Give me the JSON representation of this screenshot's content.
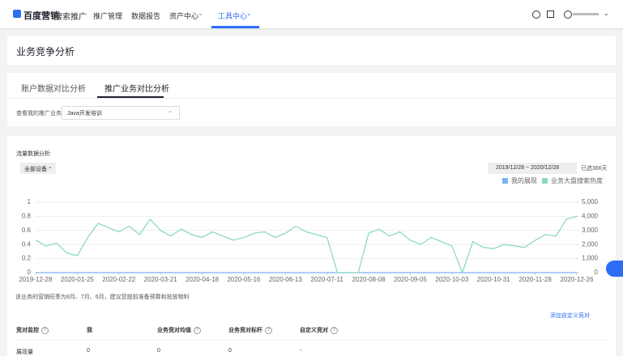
{
  "nav": {
    "logo": "百度营销",
    "product": "搜索推广",
    "items": [
      "推广管理",
      "数据报告",
      "资产中心",
      "工具中心"
    ]
  },
  "page_title": "业务竞争分析",
  "tabs": [
    "账户数据对比分析",
    "推广业务对比分析"
  ],
  "filter": {
    "label": "查看我的推广业务",
    "value": "Java开发培训"
  },
  "section_title": "流量数据分析",
  "device": "全部设备",
  "date_range": "2019/12/28 ~ 2020/12/28",
  "days": "已选366天",
  "chart_data": {
    "type": "line",
    "x": [
      "2019-12-28",
      "2020-01-04",
      "2020-01-11",
      "2020-01-18",
      "2020-01-25",
      "2020-02-01",
      "2020-02-08",
      "2020-02-15",
      "2020-02-22",
      "2020-02-29",
      "2020-03-07",
      "2020-03-14",
      "2020-03-21",
      "2020-03-28",
      "2020-04-04",
      "2020-04-11",
      "2020-04-18",
      "2020-04-25",
      "2020-05-02",
      "2020-05-09",
      "2020-05-16",
      "2020-05-23",
      "2020-05-30",
      "2020-06-06",
      "2020-06-13",
      "2020-06-20",
      "2020-06-27",
      "2020-07-04",
      "2020-07-11",
      "2020-07-18",
      "2020-07-25",
      "2020-08-01",
      "2020-08-08",
      "2020-08-15",
      "2020-08-22",
      "2020-08-29",
      "2020-09-05",
      "2020-09-12",
      "2020-09-19",
      "2020-09-26",
      "2020-10-03",
      "2020-10-10",
      "2020-10-17",
      "2020-10-24",
      "2020-10-31",
      "2020-11-07",
      "2020-11-14",
      "2020-11-21",
      "2020-11-28",
      "2020-12-05",
      "2020-12-12",
      "2020-12-19",
      "2020-12-26"
    ],
    "series": [
      {
        "name": "我的展现",
        "color": "#7fb2f0",
        "values": [
          0,
          0,
          0,
          0,
          0,
          0,
          0,
          0,
          0,
          0,
          0,
          0,
          0,
          0,
          0,
          0,
          0,
          0,
          0,
          0,
          0,
          0,
          0,
          0,
          0,
          0,
          0,
          0,
          0,
          0,
          0,
          0,
          0,
          0,
          0,
          0,
          0,
          0,
          0,
          0,
          0,
          0,
          0,
          0,
          0,
          0,
          0,
          0,
          0,
          0,
          0,
          0,
          0
        ]
      },
      {
        "name": "业务大盘搜索热度",
        "color": "#8ed9c3",
        "axis": "y2",
        "values": [
          2300,
          1900,
          2100,
          1400,
          1200,
          2500,
          3500,
          3200,
          2900,
          3300,
          2700,
          3800,
          3000,
          2600,
          3100,
          2700,
          2500,
          2900,
          2600,
          2300,
          2500,
          2800,
          2900,
          2500,
          2800,
          3300,
          2900,
          2700,
          2500,
          0,
          0,
          0,
          2800,
          3100,
          2600,
          2900,
          2300,
          2000,
          2500,
          2200,
          1900,
          0,
          2200,
          1800,
          1700,
          2000,
          1900,
          1800,
          2300,
          2700,
          2600,
          3800,
          4000
        ]
      }
    ],
    "xlim": [
      "2019-12-28",
      "2020-12-26"
    ],
    "xticks": [
      "2019-12-28",
      "2020-01-25",
      "2020-02-22",
      "2020-03-21",
      "2020-04-18",
      "2020-05-16",
      "2020-06-13",
      "2020-07-11",
      "2020-08-08",
      "2020-09-05",
      "2020-10-03",
      "2020-10-31",
      "2020-11-28",
      "2020-12-26"
    ],
    "ylim": [
      0,
      1
    ],
    "yticks": [
      0,
      0.2,
      0.4,
      0.6,
      0.8,
      1
    ],
    "y2lim": [
      0,
      5000
    ],
    "y2ticks": [
      0,
      {
        "value": 1000,
        "label": "1,000"
      },
      {
        "value": 2000,
        "label": "2,000"
      },
      {
        "value": 3000,
        "label": "3,000"
      },
      {
        "value": 4000,
        "label": "4,000"
      },
      {
        "value": 5000,
        "label": "5,000"
      }
    ],
    "grid": true,
    "legend": "top-right"
  },
  "note": "该业务的营销旺季为8月、7月、6月，建议您提前准备预算和投放物料",
  "link": "添加自定义竞对",
  "table": {
    "header": [
      "竞对监控",
      "我",
      "业务竞对均值",
      "业务竞对标杆",
      "自定义竞对"
    ],
    "rows": [
      [
        "展现量",
        "0",
        "0",
        "0",
        "-"
      ]
    ]
  }
}
